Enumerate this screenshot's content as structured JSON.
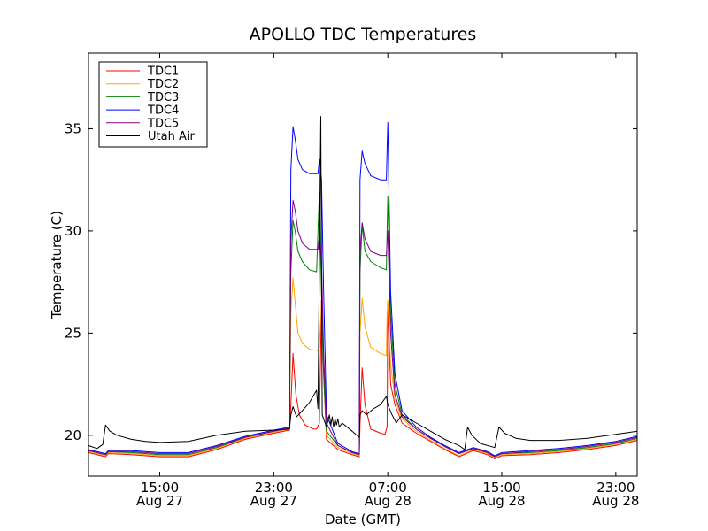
{
  "chart_data": {
    "type": "line",
    "title": "APOLLO TDC Temperatures",
    "xlabel": "Date (GMT)",
    "ylabel": "Temperature (C)",
    "x_unit": "hours since Aug 27 10:00 GMT",
    "xlim": [
      0,
      38.5
    ],
    "ylim": [
      18,
      38.7
    ],
    "yticks": [
      20,
      25,
      30,
      35
    ],
    "xticks": [
      {
        "x": 5,
        "line1": "15:00",
        "line2": "Aug 27"
      },
      {
        "x": 13,
        "line1": "23:00",
        "line2": "Aug 27"
      },
      {
        "x": 21,
        "line1": "07:00",
        "line2": "Aug 28"
      },
      {
        "x": 29,
        "line1": "15:00",
        "line2": "Aug 28"
      },
      {
        "x": 37,
        "line1": "23:00",
        "line2": "Aug 28"
      }
    ],
    "legend_position": "top-left",
    "series": [
      {
        "name": "TDC1",
        "color": "#ff0000",
        "points": [
          [
            0,
            19.15
          ],
          [
            1.2,
            18.95
          ],
          [
            1.4,
            19.1
          ],
          [
            3,
            19.05
          ],
          [
            5,
            18.95
          ],
          [
            7,
            18.95
          ],
          [
            9,
            19.3
          ],
          [
            11,
            19.8
          ],
          [
            13,
            20.1
          ],
          [
            14.1,
            20.25
          ],
          [
            14.2,
            21.5
          ],
          [
            14.35,
            24.0
          ],
          [
            14.55,
            22.0
          ],
          [
            14.8,
            21.0
          ],
          [
            15.2,
            20.5
          ],
          [
            15.8,
            20.3
          ],
          [
            16.0,
            20.3
          ],
          [
            16.2,
            20.6
          ],
          [
            16.35,
            26.6
          ],
          [
            16.5,
            23.0
          ],
          [
            16.7,
            19.8
          ],
          [
            17.5,
            19.3
          ],
          [
            18.5,
            19.05
          ],
          [
            19.0,
            18.95
          ],
          [
            19.05,
            20.5
          ],
          [
            19.2,
            23.3
          ],
          [
            19.4,
            21.5
          ],
          [
            19.8,
            20.3
          ],
          [
            20.5,
            20.1
          ],
          [
            20.8,
            20.05
          ],
          [
            20.95,
            20.4
          ],
          [
            21.0,
            26.5
          ],
          [
            21.2,
            22.5
          ],
          [
            21.5,
            21.5
          ],
          [
            22,
            20.6
          ],
          [
            23,
            20.1
          ],
          [
            24,
            19.7
          ],
          [
            25,
            19.3
          ],
          [
            26,
            18.95
          ],
          [
            27,
            19.25
          ],
          [
            27.5,
            19.15
          ],
          [
            28,
            19.05
          ],
          [
            28.5,
            18.85
          ],
          [
            29,
            19.0
          ],
          [
            31,
            19.05
          ],
          [
            33,
            19.15
          ],
          [
            35,
            19.3
          ],
          [
            37,
            19.5
          ],
          [
            38.5,
            19.75
          ]
        ]
      },
      {
        "name": "TDC2",
        "color": "#ffa500",
        "points": [
          [
            0,
            19.2
          ],
          [
            1.2,
            19.0
          ],
          [
            1.4,
            19.15
          ],
          [
            3,
            19.1
          ],
          [
            5,
            19.0
          ],
          [
            7,
            19.0
          ],
          [
            9,
            19.35
          ],
          [
            11,
            19.85
          ],
          [
            13,
            20.15
          ],
          [
            14.1,
            20.3
          ],
          [
            14.2,
            26.0
          ],
          [
            14.35,
            27.7
          ],
          [
            14.5,
            26.5
          ],
          [
            14.7,
            25.0
          ],
          [
            15.0,
            24.5
          ],
          [
            15.5,
            24.2
          ],
          [
            16.1,
            24.15
          ],
          [
            16.2,
            24.3
          ],
          [
            16.35,
            26.5
          ],
          [
            16.5,
            23.5
          ],
          [
            16.7,
            20.0
          ],
          [
            17.5,
            19.4
          ],
          [
            18.5,
            19.1
          ],
          [
            19.0,
            19.0
          ],
          [
            19.05,
            25.0
          ],
          [
            19.2,
            26.7
          ],
          [
            19.4,
            25.3
          ],
          [
            19.8,
            24.3
          ],
          [
            20.5,
            24.0
          ],
          [
            20.9,
            23.9
          ],
          [
            20.95,
            26.0
          ],
          [
            21.0,
            26.6
          ],
          [
            21.2,
            23.5
          ],
          [
            21.5,
            21.8
          ],
          [
            22,
            20.8
          ],
          [
            23,
            20.2
          ],
          [
            24,
            19.75
          ],
          [
            25,
            19.35
          ],
          [
            26,
            19.0
          ],
          [
            27,
            19.3
          ],
          [
            27.5,
            19.2
          ],
          [
            28,
            19.1
          ],
          [
            28.5,
            18.9
          ],
          [
            29,
            19.05
          ],
          [
            31,
            19.1
          ],
          [
            33,
            19.2
          ],
          [
            35,
            19.35
          ],
          [
            37,
            19.55
          ],
          [
            38.5,
            19.8
          ]
        ]
      },
      {
        "name": "TDC3",
        "color": "#008000",
        "points": [
          [
            0,
            19.25
          ],
          [
            1.2,
            19.05
          ],
          [
            1.4,
            19.2
          ],
          [
            3,
            19.15
          ],
          [
            5,
            19.05
          ],
          [
            7,
            19.05
          ],
          [
            9,
            19.4
          ],
          [
            11,
            19.9
          ],
          [
            13,
            20.2
          ],
          [
            14.1,
            20.35
          ],
          [
            14.2,
            28.0
          ],
          [
            14.35,
            30.5
          ],
          [
            14.5,
            30.0
          ],
          [
            14.7,
            29.0
          ],
          [
            15.0,
            28.5
          ],
          [
            15.5,
            28.1
          ],
          [
            16.0,
            28.0
          ],
          [
            16.1,
            30.0
          ],
          [
            16.2,
            31.9
          ],
          [
            16.35,
            27.0
          ],
          [
            16.5,
            23.0
          ],
          [
            16.7,
            20.2
          ],
          [
            17.5,
            19.5
          ],
          [
            18.5,
            19.15
          ],
          [
            19.0,
            19.05
          ],
          [
            19.05,
            28.0
          ],
          [
            19.2,
            30.3
          ],
          [
            19.4,
            29.0
          ],
          [
            19.8,
            28.5
          ],
          [
            20.5,
            28.2
          ],
          [
            20.9,
            28.1
          ],
          [
            20.95,
            30.0
          ],
          [
            21.0,
            31.7
          ],
          [
            21.2,
            26.0
          ],
          [
            21.5,
            22.5
          ],
          [
            22,
            21.0
          ],
          [
            23,
            20.3
          ],
          [
            24,
            19.85
          ],
          [
            25,
            19.45
          ],
          [
            26,
            19.1
          ],
          [
            27,
            19.35
          ],
          [
            27.5,
            19.25
          ],
          [
            28,
            19.15
          ],
          [
            28.5,
            18.95
          ],
          [
            29,
            19.1
          ],
          [
            31,
            19.15
          ],
          [
            33,
            19.25
          ],
          [
            35,
            19.4
          ],
          [
            37,
            19.6
          ],
          [
            38.5,
            19.85
          ]
        ]
      },
      {
        "name": "TDC4",
        "color": "#0000ff",
        "points": [
          [
            0,
            19.3
          ],
          [
            1.2,
            19.1
          ],
          [
            1.4,
            19.25
          ],
          [
            3,
            19.25
          ],
          [
            5,
            19.15
          ],
          [
            7,
            19.15
          ],
          [
            9,
            19.5
          ],
          [
            11,
            19.95
          ],
          [
            13,
            20.25
          ],
          [
            14.1,
            20.4
          ],
          [
            14.2,
            33.0
          ],
          [
            14.35,
            35.1
          ],
          [
            14.5,
            34.5
          ],
          [
            14.7,
            33.5
          ],
          [
            15.0,
            33.0
          ],
          [
            15.5,
            32.8
          ],
          [
            16.1,
            32.8
          ],
          [
            16.2,
            33.5
          ],
          [
            16.35,
            32.5
          ],
          [
            16.5,
            27.0
          ],
          [
            16.7,
            21.0
          ],
          [
            17.5,
            19.6
          ],
          [
            18.5,
            19.2
          ],
          [
            19.0,
            19.1
          ],
          [
            19.05,
            32.5
          ],
          [
            19.2,
            33.9
          ],
          [
            19.4,
            33.3
          ],
          [
            19.8,
            32.7
          ],
          [
            20.5,
            32.5
          ],
          [
            20.9,
            32.5
          ],
          [
            20.95,
            34.0
          ],
          [
            21.0,
            35.3
          ],
          [
            21.2,
            27.0
          ],
          [
            21.5,
            23.0
          ],
          [
            22,
            21.2
          ],
          [
            23,
            20.4
          ],
          [
            24,
            19.9
          ],
          [
            25,
            19.5
          ],
          [
            26,
            19.15
          ],
          [
            27,
            19.4
          ],
          [
            27.5,
            19.3
          ],
          [
            28,
            19.2
          ],
          [
            28.5,
            19.0
          ],
          [
            29,
            19.15
          ],
          [
            31,
            19.25
          ],
          [
            33,
            19.35
          ],
          [
            35,
            19.5
          ],
          [
            37,
            19.7
          ],
          [
            38.5,
            19.95
          ]
        ]
      },
      {
        "name": "TDC5",
        "color": "#800080",
        "points": [
          [
            0,
            19.25
          ],
          [
            1.2,
            19.05
          ],
          [
            1.4,
            19.2
          ],
          [
            3,
            19.2
          ],
          [
            5,
            19.1
          ],
          [
            7,
            19.1
          ],
          [
            9,
            19.45
          ],
          [
            11,
            19.9
          ],
          [
            13,
            20.2
          ],
          [
            14.1,
            20.35
          ],
          [
            14.2,
            29.5
          ],
          [
            14.35,
            31.5
          ],
          [
            14.5,
            31.0
          ],
          [
            14.7,
            30.0
          ],
          [
            15.0,
            29.4
          ],
          [
            15.5,
            29.1
          ],
          [
            16.1,
            29.1
          ],
          [
            16.2,
            29.8
          ],
          [
            16.35,
            28.5
          ],
          [
            16.5,
            24.0
          ],
          [
            16.7,
            20.6
          ],
          [
            17.5,
            19.5
          ],
          [
            18.5,
            19.15
          ],
          [
            19.0,
            19.05
          ],
          [
            19.05,
            29.0
          ],
          [
            19.2,
            30.4
          ],
          [
            19.4,
            29.6
          ],
          [
            19.8,
            29.0
          ],
          [
            20.5,
            28.8
          ],
          [
            20.9,
            28.8
          ],
          [
            20.95,
            29.5
          ],
          [
            21.0,
            30.0
          ],
          [
            21.2,
            25.0
          ],
          [
            21.5,
            22.0
          ],
          [
            22,
            20.9
          ],
          [
            23,
            20.3
          ],
          [
            24,
            19.85
          ],
          [
            25,
            19.45
          ],
          [
            26,
            19.1
          ],
          [
            27,
            19.35
          ],
          [
            27.5,
            19.25
          ],
          [
            28,
            19.15
          ],
          [
            28.5,
            18.95
          ],
          [
            29,
            19.1
          ],
          [
            31,
            19.2
          ],
          [
            33,
            19.3
          ],
          [
            35,
            19.45
          ],
          [
            37,
            19.65
          ],
          [
            38.5,
            19.9
          ]
        ]
      },
      {
        "name": "Utah Air",
        "color": "#000000",
        "points": [
          [
            0,
            19.5
          ],
          [
            0.6,
            19.35
          ],
          [
            1.0,
            19.55
          ],
          [
            1.2,
            20.5
          ],
          [
            1.5,
            20.2
          ],
          [
            2,
            20.0
          ],
          [
            3,
            19.8
          ],
          [
            4,
            19.7
          ],
          [
            5,
            19.65
          ],
          [
            7,
            19.7
          ],
          [
            9,
            20.0
          ],
          [
            11,
            20.2
          ],
          [
            13,
            20.25
          ],
          [
            14.1,
            20.3
          ],
          [
            14.2,
            21.0
          ],
          [
            14.35,
            21.4
          ],
          [
            14.6,
            20.9
          ],
          [
            15.0,
            21.2
          ],
          [
            15.5,
            21.6
          ],
          [
            16.0,
            22.2
          ],
          [
            16.1,
            21.3
          ],
          [
            16.3,
            35.6
          ],
          [
            16.4,
            21.0
          ],
          [
            16.7,
            20.4
          ],
          [
            16.9,
            21.0
          ],
          [
            17.0,
            20.5
          ],
          [
            17.1,
            20.9
          ],
          [
            17.2,
            20.4
          ],
          [
            17.3,
            20.8
          ],
          [
            17.4,
            20.5
          ],
          [
            17.5,
            20.8
          ],
          [
            17.6,
            20.4
          ],
          [
            17.8,
            20.6
          ],
          [
            18.5,
            20.2
          ],
          [
            19.0,
            19.9
          ],
          [
            19.05,
            21.0
          ],
          [
            19.2,
            21.2
          ],
          [
            19.5,
            21.0
          ],
          [
            20.0,
            21.3
          ],
          [
            20.5,
            21.5
          ],
          [
            20.9,
            21.9
          ],
          [
            21.0,
            21.5
          ],
          [
            21.3,
            21.0
          ],
          [
            21.6,
            20.6
          ],
          [
            22.0,
            21.0
          ],
          [
            22.5,
            20.8
          ],
          [
            23,
            20.6
          ],
          [
            24,
            20.2
          ],
          [
            25,
            19.8
          ],
          [
            26,
            19.5
          ],
          [
            26.4,
            19.3
          ],
          [
            26.6,
            20.4
          ],
          [
            26.9,
            20.0
          ],
          [
            27.5,
            19.6
          ],
          [
            28.5,
            19.4
          ],
          [
            28.8,
            20.4
          ],
          [
            29.2,
            20.1
          ],
          [
            30,
            19.85
          ],
          [
            31,
            19.75
          ],
          [
            33,
            19.75
          ],
          [
            35,
            19.85
          ],
          [
            37,
            20.05
          ],
          [
            38.5,
            20.2
          ]
        ]
      }
    ]
  }
}
